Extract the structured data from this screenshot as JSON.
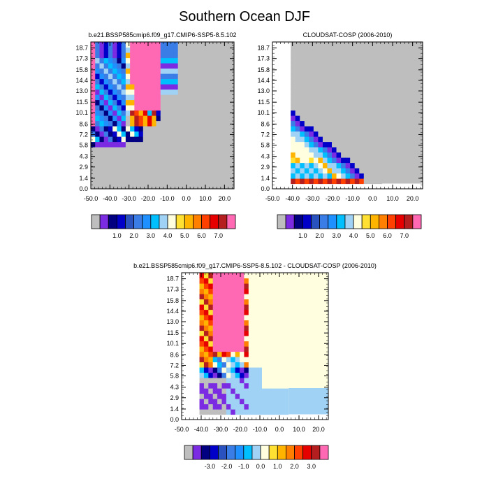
{
  "figure": {
    "title": "Southern Ocean DJF"
  },
  "chart_data": [
    {
      "type": "heatmap",
      "title": "b.e21.BSSP585cmip6.f09_g17.CMIP6-SSP5-8.5.102",
      "x_ticks": [
        "-50.0",
        "-40.0",
        "-30.0",
        "-20.0",
        "-10.0",
        "0.0",
        "10.0",
        "20.0"
      ],
      "x_range": [
        -50,
        25
      ],
      "y_ticks": [
        "0.0",
        "1.4",
        "2.9",
        "4.3",
        "5.8",
        "7.2",
        "8.6",
        "10.1",
        "11.5",
        "13.0",
        "14.4",
        "15.8",
        "17.3",
        "18.7"
      ],
      "y_range": [
        0,
        19.5
      ],
      "missing_color": "#bebebe",
      "colorbar": {
        "labels": [
          "1.0",
          "2.0",
          "3.0",
          "4.0",
          "5.0",
          "6.0",
          "7.0"
        ],
        "colors": [
          "#bebebe",
          "#7b2be2",
          "#000080",
          "#0000c8",
          "#2a52be",
          "#3a7de6",
          "#1e90ff",
          "#00bfff",
          "#a0d2f5",
          "#ffffe0",
          "#ffe033",
          "#ffb400",
          "#ff8000",
          "#ff4000",
          "#e60000",
          "#b41e1e",
          "#ff69b4"
        ]
      }
    },
    {
      "type": "heatmap",
      "title": "CLOUDSAT-COSP (2006-2010)",
      "x_ticks": [
        "-50.0",
        "-40.0",
        "-30.0",
        "-20.0",
        "-10.0",
        "0.0",
        "10.0",
        "20.0"
      ],
      "x_range": [
        -50,
        25
      ],
      "y_ticks": [
        "0.0",
        "1.4",
        "2.9",
        "4.3",
        "5.8",
        "7.2",
        "8.6",
        "10.1",
        "11.5",
        "13.0",
        "14.4",
        "15.8",
        "17.3",
        "18.7"
      ],
      "y_range": [
        0,
        19.5
      ],
      "missing_color": "#bebebe",
      "colorbar": {
        "labels": [
          "1.0",
          "2.0",
          "3.0",
          "4.0",
          "5.0",
          "6.0",
          "7.0"
        ],
        "colors": [
          "#bebebe",
          "#7b2be2",
          "#000080",
          "#0000c8",
          "#2a52be",
          "#3a7de6",
          "#1e90ff",
          "#00bfff",
          "#a0d2f5",
          "#ffffe0",
          "#ffe033",
          "#ffb400",
          "#ff8000",
          "#ff4000",
          "#e60000",
          "#b41e1e",
          "#ff69b4"
        ]
      }
    },
    {
      "type": "heatmap",
      "title": "b.e21.BSSP585cmip6.f09_g17.CMIP6-SSP5-8.5.102 - CLOUDSAT-COSP (2006-2010)",
      "x_ticks": [
        "-50.0",
        "-40.0",
        "-30.0",
        "-20.0",
        "-10.0",
        "0.0",
        "10.0",
        "20.0"
      ],
      "x_range": [
        -50,
        25
      ],
      "y_ticks": [
        "0.0",
        "1.4",
        "2.9",
        "4.3",
        "5.8",
        "7.2",
        "8.6",
        "10.1",
        "11.5",
        "13.0",
        "14.4",
        "15.8",
        "17.3",
        "18.7"
      ],
      "y_range": [
        0,
        19.5
      ],
      "missing_color": "#bebebe",
      "colorbar": {
        "labels": [
          "-3.0",
          "-2.0",
          "-1.0",
          "0.0",
          "1.0",
          "2.0",
          "3.0"
        ],
        "colors": [
          "#bebebe",
          "#7b2be2",
          "#000080",
          "#0000c8",
          "#2a52be",
          "#3a7de6",
          "#1e90ff",
          "#00bfff",
          "#a0d2f5",
          "#ffffe0",
          "#ffe033",
          "#ffb400",
          "#ff8000",
          "#ff4000",
          "#e60000",
          "#b41e1e",
          "#ff69b4"
        ]
      }
    }
  ]
}
